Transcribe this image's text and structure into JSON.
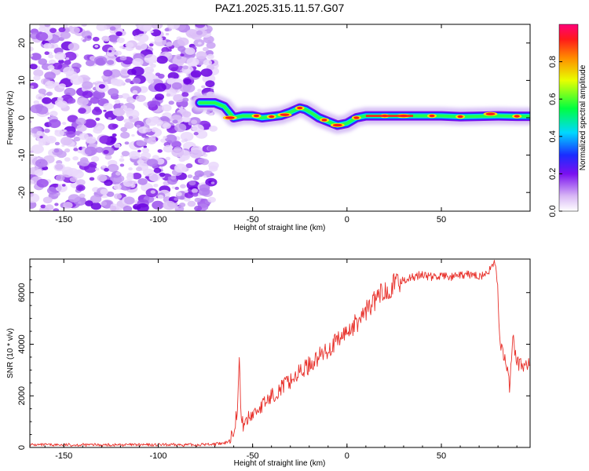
{
  "figure": {
    "title": "PAZ1.2025.315.11.57.G07"
  },
  "chart_data": [
    {
      "type": "heatmap",
      "name": "spectrogram",
      "xlabel": "Height of straight line (km)",
      "ylabel": "Frequency (Hz)",
      "xlim": [
        -168,
        97
      ],
      "ylim": [
        -25,
        25
      ],
      "x_ticks": [
        -150,
        -100,
        -50,
        0,
        50
      ],
      "y_ticks": [
        -20,
        -10,
        0,
        10,
        20
      ],
      "colorbar": {
        "label": "Normalized spectral amplitude",
        "range": [
          0,
          1
        ],
        "ticks": [
          "0.0",
          "0.2",
          "0.4",
          "0.6",
          "0.8"
        ]
      },
      "noise_region_x": [
        -168,
        -70
      ],
      "main_tone_trace": {
        "x": [
          -78,
          -70,
          -65,
          -60,
          -55,
          -50,
          -45,
          -40,
          -35,
          -30,
          -25,
          -22,
          -18,
          -15,
          -10,
          -5,
          0,
          5,
          10,
          20,
          30,
          40,
          50,
          60,
          70,
          80,
          90,
          97
        ],
        "y": [
          4,
          4,
          3,
          0,
          0.5,
          0.5,
          0,
          0.3,
          0.6,
          1.5,
          2.6,
          2.2,
          1,
          0,
          -1,
          -2,
          -1.5,
          0,
          0.5,
          0.5,
          0.5,
          0.5,
          0.5,
          0.3,
          0.4,
          0.5,
          0.4,
          0.4
        ]
      }
    },
    {
      "type": "line",
      "name": "snr",
      "xlabel": "Height of straight line (km)",
      "ylabel": "SNR (10 * v/v)",
      "xlim": [
        -168,
        97
      ],
      "ylim": [
        0,
        7300
      ],
      "x_ticks": [
        -150,
        -100,
        -50,
        0,
        50
      ],
      "y_ticks": [
        0,
        2000,
        4000,
        6000
      ],
      "series": [
        {
          "name": "SNR",
          "color": "#e8312b",
          "x": [
            -168,
            -150,
            -120,
            -100,
            -80,
            -65,
            -62,
            -60,
            -58,
            -57,
            -56,
            -55,
            -50,
            -45,
            -40,
            -35,
            -30,
            -25,
            -20,
            -15,
            -10,
            -5,
            0,
            5,
            10,
            15,
            20,
            25,
            30,
            35,
            40,
            45,
            50,
            55,
            60,
            65,
            70,
            75,
            76,
            78,
            79,
            80,
            81,
            82,
            84,
            86,
            88,
            90,
            92,
            94,
            97
          ],
          "y": [
            100,
            100,
            100,
            100,
            100,
            150,
            300,
            700,
            1500,
            3400,
            1000,
            900,
            1300,
            1600,
            2000,
            2300,
            2600,
            2900,
            3200,
            3500,
            3800,
            4100,
            4500,
            4800,
            5300,
            5700,
            6100,
            6300,
            6500,
            6600,
            6700,
            6600,
            6650,
            6600,
            6650,
            6700,
            6650,
            6700,
            7000,
            7200,
            6800,
            6000,
            3900,
            3700,
            3500,
            2300,
            4200,
            3300,
            3200,
            3200,
            3200
          ]
        }
      ]
    }
  ]
}
